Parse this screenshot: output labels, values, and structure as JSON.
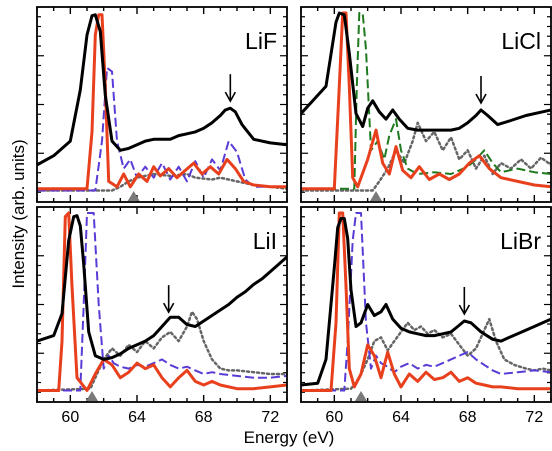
{
  "figure": {
    "xlabel": "Energy (eV)",
    "ylabel": "Intensity (arb. units)"
  },
  "colors": {
    "black": "#000000",
    "red": "#e8401c",
    "violet": "#5b3bd6",
    "green": "#1f7a1f",
    "gray": "#666666",
    "marker": "#7a7a7a"
  },
  "chart_data": [
    {
      "type": "line",
      "label": "LiF",
      "xlim": [
        58,
        73
      ],
      "ylim": [
        0,
        1
      ],
      "xticks": [
        60,
        64,
        68,
        72
      ],
      "show_xtick_labels": false,
      "marker_x": 63.8,
      "arrow_x": 69.6,
      "series": [
        {
          "key": "black",
          "style": "solid",
          "width": 3,
          "x": [
            58,
            59,
            60,
            60.6,
            61,
            61.3,
            61.5,
            61.8,
            62.1,
            62.5,
            63,
            63.5,
            64,
            64.5,
            65,
            66,
            66.5,
            67,
            67.5,
            68,
            68.5,
            69,
            69.3,
            69.6,
            69.9,
            70.3,
            71,
            72,
            73
          ],
          "y": [
            0.17,
            0.22,
            0.3,
            0.58,
            0.88,
            0.985,
            0.99,
            0.9,
            0.55,
            0.3,
            0.25,
            0.26,
            0.28,
            0.3,
            0.31,
            0.31,
            0.33,
            0.34,
            0.35,
            0.37,
            0.4,
            0.44,
            0.47,
            0.48,
            0.46,
            0.39,
            0.31,
            0.29,
            0.28
          ]
        },
        {
          "key": "red",
          "style": "solid",
          "width": 3,
          "x": [
            58,
            61,
            61.3,
            61.5,
            61.7,
            61.9,
            62.1,
            62.3,
            62.8,
            63.2,
            63.6,
            64.1,
            64.6,
            65,
            65.4,
            65.9,
            66.4,
            66.9,
            67.4,
            67.9,
            68.4,
            68.9,
            69.4,
            69.9,
            70.4,
            71,
            72,
            73
          ],
          "y": [
            0.04,
            0.04,
            0.35,
            0.88,
            0.99,
            0.99,
            0.6,
            0.08,
            0.05,
            0.12,
            0.05,
            0.12,
            0.08,
            0.16,
            0.11,
            0.15,
            0.1,
            0.14,
            0.18,
            0.12,
            0.16,
            0.12,
            0.2,
            0.15,
            0.08,
            0.06,
            0.05,
            0.05
          ]
        },
        {
          "key": "violet",
          "style": "dashed",
          "width": 2,
          "x": [
            58,
            61.5,
            61.9,
            62.2,
            62.5,
            62.8,
            63.2,
            63.6,
            64,
            64.5,
            65,
            65.5,
            66,
            66.5,
            67,
            67.5,
            68,
            68.5,
            69,
            69.5,
            70,
            70.5,
            71,
            72,
            73
          ],
          "y": [
            0.03,
            0.03,
            0.3,
            0.7,
            0.68,
            0.3,
            0.15,
            0.2,
            0.1,
            0.16,
            0.1,
            0.18,
            0.09,
            0.16,
            0.08,
            0.19,
            0.1,
            0.2,
            0.14,
            0.3,
            0.24,
            0.09,
            0.05,
            0.05,
            0.05
          ]
        },
        {
          "key": "gray",
          "style": "dotted",
          "width": 2.5,
          "x": [
            58,
            62.5,
            63,
            63.5,
            64,
            65,
            66,
            67,
            67.5,
            68.5,
            69,
            70,
            71,
            72,
            73
          ],
          "y": [
            0.03,
            0.03,
            0.05,
            0.08,
            0.1,
            0.12,
            0.11,
            0.12,
            0.1,
            0.09,
            0.1,
            0.08,
            0.06,
            0.05,
            0.04
          ]
        }
      ]
    },
    {
      "type": "line",
      "label": "LiCl",
      "xlim": [
        58,
        73
      ],
      "ylim": [
        0,
        1
      ],
      "xticks": [
        60,
        64,
        68,
        72
      ],
      "show_xtick_labels": false,
      "marker_x": 62.5,
      "arrow_x": 68.8,
      "series": [
        {
          "key": "black",
          "style": "solid",
          "width": 3,
          "x": [
            58,
            59.5,
            60.1,
            60.3,
            60.6,
            60.9,
            61.3,
            61.7,
            62,
            62.3,
            62.7,
            63.1,
            63.5,
            63.9,
            64.4,
            65,
            66,
            67,
            67.5,
            68,
            68.5,
            68.8,
            69.2,
            69.8,
            70.5,
            71.5,
            72.5,
            73
          ],
          "y": [
            0.45,
            0.6,
            0.95,
            1,
            0.99,
            0.78,
            0.45,
            0.38,
            0.48,
            0.52,
            0.46,
            0.42,
            0.47,
            0.42,
            0.37,
            0.36,
            0.36,
            0.36,
            0.37,
            0.4,
            0.44,
            0.47,
            0.44,
            0.39,
            0.41,
            0.44,
            0.46,
            0.47
          ]
        },
        {
          "key": "red",
          "style": "solid",
          "width": 3,
          "x": [
            58,
            60,
            60.3,
            60.5,
            60.7,
            60.9,
            61.1,
            61.4,
            62,
            62.5,
            62.9,
            63.3,
            63.7,
            64.1,
            64.6,
            65.1,
            65.7,
            66.3,
            66.9,
            67.5,
            68.1,
            68.7,
            69.3,
            70,
            71,
            72,
            73
          ],
          "y": [
            0.04,
            0.04,
            0.6,
            1,
            1,
            0.6,
            0.1,
            0.05,
            0.2,
            0.36,
            0.18,
            0.12,
            0.27,
            0.14,
            0.1,
            0.16,
            0.09,
            0.12,
            0.09,
            0.12,
            0.18,
            0.22,
            0.15,
            0.1,
            0.08,
            0.06,
            0.05
          ]
        },
        {
          "key": "green",
          "style": "dashed",
          "width": 2,
          "x": [
            58,
            61.2,
            61.35,
            61.5,
            61.7,
            61.9,
            62.2,
            62.6,
            63,
            63.3,
            63.7,
            64,
            64.4,
            65,
            66,
            67,
            68,
            68.5,
            69,
            69.5,
            70,
            71,
            72,
            73
          ],
          "y": [
            0.04,
            0.04,
            0.6,
            1,
            1,
            0.8,
            0.25,
            0.3,
            0.2,
            0.33,
            0.42,
            0.25,
            0.15,
            0.12,
            0.13,
            0.12,
            0.16,
            0.2,
            0.25,
            0.18,
            0.13,
            0.15,
            0.13,
            0.12
          ]
        },
        {
          "key": "gray",
          "style": "dotted",
          "width": 2.5,
          "x": [
            58,
            62.3,
            62.7,
            63.2,
            63.7,
            64.2,
            64.7,
            65,
            65.5,
            66,
            66.5,
            67,
            67.5,
            68,
            68.5,
            69,
            69.5,
            70,
            70.6,
            71.2,
            71.8,
            72.4,
            73
          ],
          "y": [
            0.03,
            0.03,
            0.08,
            0.15,
            0.25,
            0.18,
            0.3,
            0.4,
            0.3,
            0.35,
            0.25,
            0.32,
            0.2,
            0.25,
            0.15,
            0.22,
            0.12,
            0.18,
            0.15,
            0.2,
            0.15,
            0.21,
            0.17
          ]
        }
      ]
    },
    {
      "type": "line",
      "label": "LiI",
      "xlim": [
        58,
        73
      ],
      "ylim": [
        0,
        1
      ],
      "xticks": [
        60,
        64,
        68,
        72
      ],
      "show_xtick_labels": true,
      "marker_x": 61.3,
      "arrow_x": 65.9,
      "series": [
        {
          "key": "black",
          "style": "solid",
          "width": 3,
          "x": [
            58,
            59,
            59.5,
            59.9,
            60.2,
            60.4,
            60.6,
            60.8,
            61.1,
            61.5,
            62,
            62.5,
            63,
            63.5,
            64,
            64.5,
            65,
            65.5,
            66,
            66.5,
            67,
            67.5,
            68,
            68.5,
            69,
            69.5,
            70,
            70.5,
            71,
            71.5,
            72,
            72.5,
            73
          ],
          "y": [
            0.3,
            0.33,
            0.45,
            0.85,
            0.98,
            0.985,
            0.93,
            0.72,
            0.35,
            0.22,
            0.2,
            0.21,
            0.23,
            0.26,
            0.28,
            0.3,
            0.33,
            0.38,
            0.43,
            0.43,
            0.39,
            0.38,
            0.41,
            0.44,
            0.47,
            0.5,
            0.54,
            0.57,
            0.61,
            0.64,
            0.68,
            0.72,
            0.76
          ]
        },
        {
          "key": "red",
          "style": "solid",
          "width": 3,
          "x": [
            58,
            59.3,
            59.5,
            59.7,
            59.9,
            60.1,
            60.4,
            61,
            61.5,
            62,
            62.5,
            63,
            63.5,
            64,
            64.5,
            65,
            65.5,
            66,
            66.5,
            67,
            67.5,
            68,
            68.5,
            69,
            70,
            71,
            72,
            73
          ],
          "y": [
            0.03,
            0.03,
            0.3,
            0.98,
            1,
            0.6,
            0.1,
            0.03,
            0.12,
            0.2,
            0.17,
            0.1,
            0.13,
            0.18,
            0.15,
            0.17,
            0.1,
            0.05,
            0.1,
            0.14,
            0.08,
            0.06,
            0.08,
            0.06,
            0.04,
            0.04,
            0.05,
            0.06
          ]
        },
        {
          "key": "violet",
          "style": "dashed",
          "width": 2,
          "x": [
            58,
            60.6,
            60.8,
            61,
            61.2,
            61.4,
            61.7,
            62,
            62.3,
            62.6,
            63,
            63.5,
            64,
            64.5,
            65,
            65.5,
            66,
            66.5,
            67,
            67.5,
            68,
            68.5,
            69,
            70,
            71,
            72,
            73
          ],
          "y": [
            0.03,
            0.03,
            0.5,
            1,
            1,
            1,
            0.5,
            0.15,
            0.22,
            0.18,
            0.16,
            0.15,
            0.17,
            0.16,
            0.18,
            0.2,
            0.17,
            0.15,
            0.16,
            0.14,
            0.12,
            0.13,
            0.12,
            0.11,
            0.1,
            0.1,
            0.11
          ]
        },
        {
          "key": "gray",
          "style": "dotted",
          "width": 2.5,
          "x": [
            58,
            61.2,
            61.6,
            62,
            62.5,
            63,
            63.5,
            64,
            64.5,
            65,
            65.5,
            66,
            66.5,
            67,
            67.3,
            67.6,
            68,
            68.5,
            69,
            69.5,
            70,
            71,
            72,
            73
          ],
          "y": [
            0.03,
            0.04,
            0.12,
            0.2,
            0.26,
            0.22,
            0.28,
            0.24,
            0.3,
            0.26,
            0.32,
            0.35,
            0.3,
            0.38,
            0.46,
            0.42,
            0.3,
            0.2,
            0.15,
            0.14,
            0.14,
            0.13,
            0.12,
            0.12
          ]
        }
      ]
    },
    {
      "type": "line",
      "label": "LiBr",
      "xlim": [
        58,
        73
      ],
      "ylim": [
        0,
        1
      ],
      "xticks": [
        60,
        64,
        68,
        72
      ],
      "show_xtick_labels": true,
      "marker_x": 61.6,
      "arrow_x": 67.8,
      "series": [
        {
          "key": "black",
          "style": "solid",
          "width": 3,
          "x": [
            58,
            59,
            59.5,
            60,
            60.2,
            60.4,
            60.6,
            60.8,
            61,
            61.3,
            61.6,
            62,
            62.4,
            62.8,
            63.1,
            63.5,
            64,
            64.5,
            65,
            65.5,
            66,
            66.5,
            67,
            67.4,
            67.8,
            68.2,
            68.8,
            69.5,
            70,
            70.5,
            71,
            71.5,
            72,
            72.5,
            73
          ],
          "y": [
            0.06,
            0.07,
            0.2,
            0.7,
            0.92,
            0.97,
            0.97,
            0.86,
            0.58,
            0.38,
            0.4,
            0.5,
            0.44,
            0.46,
            0.5,
            0.42,
            0.37,
            0.35,
            0.34,
            0.33,
            0.33,
            0.34,
            0.35,
            0.38,
            0.41,
            0.4,
            0.35,
            0.31,
            0.3,
            0.32,
            0.34,
            0.36,
            0.38,
            0.4,
            0.42
          ]
        },
        {
          "key": "red",
          "style": "solid",
          "width": 3,
          "x": [
            58,
            59.8,
            60.1,
            60.3,
            60.5,
            60.7,
            60.9,
            61.2,
            61.6,
            62,
            62.4,
            62.8,
            63.2,
            63.6,
            64,
            64.5,
            65,
            65.5,
            66,
            66.5,
            67,
            67.5,
            68,
            68.5,
            69,
            69.5,
            70,
            71,
            72,
            73
          ],
          "y": [
            0.03,
            0.03,
            0.4,
            1,
            1,
            0.6,
            0.15,
            0.05,
            0.12,
            0.28,
            0.22,
            0.1,
            0.24,
            0.12,
            0.05,
            0.12,
            0.08,
            0.13,
            0.09,
            0.1,
            0.13,
            0.08,
            0.1,
            0.07,
            0.06,
            0.05,
            0.05,
            0.04,
            0.04,
            0.04
          ]
        },
        {
          "key": "violet",
          "style": "dashed",
          "width": 2,
          "x": [
            58,
            60.6,
            60.8,
            61.1,
            61.3,
            61.6,
            61.9,
            62.2,
            62.5,
            62.8,
            63.2,
            63.6,
            64,
            64.5,
            65,
            65.5,
            66,
            66.5,
            67,
            67.5,
            68,
            68.5,
            69,
            69.5,
            70,
            71,
            72,
            73
          ],
          "y": [
            0.03,
            0.03,
            0.3,
            0.85,
            1,
            1,
            0.4,
            0.15,
            0.22,
            0.18,
            0.16,
            0.13,
            0.16,
            0.18,
            0.15,
            0.17,
            0.16,
            0.18,
            0.2,
            0.22,
            0.24,
            0.2,
            0.17,
            0.14,
            0.12,
            0.13,
            0.14,
            0.13
          ]
        },
        {
          "key": "gray",
          "style": "dotted",
          "width": 2.5,
          "x": [
            58,
            61,
            61.5,
            62,
            62.4,
            62.8,
            63.2,
            63.6,
            64,
            64.4,
            64.8,
            65.2,
            65.6,
            66,
            66.5,
            67,
            67.5,
            68,
            68.5,
            69,
            69.3,
            69.7,
            70.2,
            70.8,
            71.5,
            72,
            72.5,
            73
          ],
          "y": [
            0.03,
            0.04,
            0.1,
            0.2,
            0.3,
            0.32,
            0.25,
            0.3,
            0.35,
            0.4,
            0.36,
            0.38,
            0.34,
            0.36,
            0.32,
            0.34,
            0.28,
            0.22,
            0.26,
            0.36,
            0.42,
            0.3,
            0.2,
            0.17,
            0.15,
            0.14,
            0.15,
            0.14
          ]
        }
      ]
    }
  ]
}
